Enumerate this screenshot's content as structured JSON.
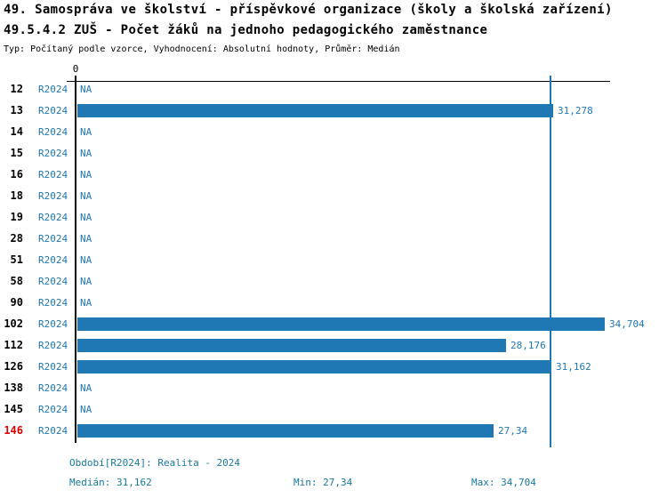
{
  "chart_data": {
    "type": "bar",
    "orientation": "horizontal",
    "title_line1": "49. Samospráva ve školství - příspěvkové organizace (školy a školská zařízení)",
    "title_line2": "49.5.4.2 ZUŠ - Počet žáků na jednoho pedagogického zaměstnance",
    "subtitle": "Typ: Počítaný podle vzorce, Vyhodnocení: Absolutní hodnoty, Průměr: Medián",
    "value_axis": {
      "zero_label": "0",
      "xlim": [
        0,
        35
      ],
      "gridlines": false
    },
    "period_label": "R2024",
    "na_label": "NA",
    "median_value": 31.162,
    "rows": [
      {
        "category": "12",
        "value": null
      },
      {
        "category": "13",
        "value": 31.278,
        "value_label": "31,278"
      },
      {
        "category": "14",
        "value": null
      },
      {
        "category": "15",
        "value": null
      },
      {
        "category": "16",
        "value": null
      },
      {
        "category": "18",
        "value": null
      },
      {
        "category": "19",
        "value": null
      },
      {
        "category": "28",
        "value": null
      },
      {
        "category": "51",
        "value": null
      },
      {
        "category": "58",
        "value": null
      },
      {
        "category": "90",
        "value": null
      },
      {
        "category": "102",
        "value": 34.704,
        "value_label": "34,704"
      },
      {
        "category": "112",
        "value": 28.176,
        "value_label": "28,176"
      },
      {
        "category": "126",
        "value": 31.162,
        "value_label": "31,162"
      },
      {
        "category": "138",
        "value": null
      },
      {
        "category": "145",
        "value": null
      },
      {
        "category": "146",
        "value": 27.34,
        "value_label": "27,34",
        "highlighted": true
      }
    ],
    "footer": {
      "period_line": "Období[R2024]: Realita - 2024",
      "median_line": "Medián: 31,162",
      "min_line": "Min: 27,34",
      "max_line": "Max: 34,704"
    },
    "colors": {
      "bar": "#1f77b4",
      "blue_text": "#1f77b4",
      "highlight_text": "#dd0000",
      "footer_text": "#17789b",
      "axis": "#000000"
    }
  }
}
